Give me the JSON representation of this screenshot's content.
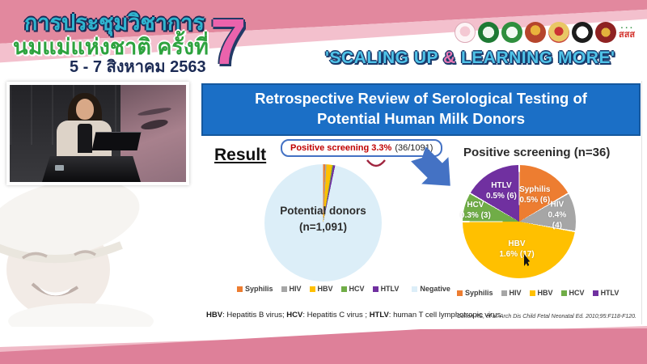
{
  "header": {
    "title_line1": "การประชุมวิชาการ",
    "title_line2": "นมแม่แห่งชาติ ครั้งที่",
    "date_line": "5 - 7 สิงหาคม 2563",
    "edition_number": "7",
    "slogan_prefix": "'SCALING UP ",
    "slogan_amp": "&",
    "slogan_suffix": " LEARNING MORE'",
    "logo_names": [
      "mother-child-foundation-logo",
      "green-seal-logo",
      "green-medical-association-logo",
      "royal-thai-emblem-logo",
      "gold-institute-emblem-logo",
      "monochrome-society-emblem-logo",
      "red-crest-logo",
      "thai-health-promotion-logo"
    ],
    "thai_health_logo_text": "สสส"
  },
  "slide": {
    "title": "Retrospective Review of Serological Testing of Potential Human Milk Donors",
    "result_label": "Result",
    "callout_highlight": "Positive screening 3.3%",
    "callout_detail": "(36/1091)",
    "footnote": [
      {
        "abbr": "HBV",
        "rest": ": Hepatitis B virus; "
      },
      {
        "abbr": "HCV",
        "rest": ": Hepatitis C virus ; "
      },
      {
        "abbr": "HTLV",
        "rest": ": human T cell lymphotropic virus"
      }
    ],
    "citation": "Cohen RS, et al. Arch Dis Child Fetal Neonatal Ed. 2010;95:F118-F120."
  },
  "chart_data": [
    {
      "type": "pie",
      "title": "Potential donors (n=1,091)",
      "center_label": "Potential donors\n(n=1,091)",
      "n_total": 1091,
      "annotation": "Positive screening 3.3% (36/1091)",
      "legend_position": "bottom",
      "slices": [
        {
          "label": "Syphilis",
          "pct": 0.5,
          "count": 6,
          "color": "#ED7D31"
        },
        {
          "label": "HIV",
          "pct": 0.4,
          "count": 4,
          "color": "#A6A6A6"
        },
        {
          "label": "HBV",
          "pct": 1.6,
          "count": 17,
          "color": "#FFC000"
        },
        {
          "label": "HCV",
          "pct": 0.3,
          "count": 3,
          "color": "#70AD47"
        },
        {
          "label": "HTLV",
          "pct": 0.5,
          "count": 6,
          "color": "#7030A0"
        },
        {
          "label": "Negative",
          "pct": 96.7,
          "count": 1055,
          "color": "#DCEEF8"
        }
      ],
      "legend": [
        "Syphilis",
        "HIV",
        "HBV",
        "HCV",
        "HTLV",
        "Negative"
      ]
    },
    {
      "type": "pie",
      "title": "Positive screening (n=36)",
      "n_total": 36,
      "legend_position": "bottom",
      "slices": [
        {
          "label": "Syphilis",
          "pct": 0.5,
          "count": 6,
          "color": "#ED7D31",
          "slice_label": "Syphilis\n0.5% (6)"
        },
        {
          "label": "HIV",
          "pct": 0.4,
          "count": 4,
          "color": "#A6A6A6",
          "slice_label": "HIV\n0.4% (4)"
        },
        {
          "label": "HBV",
          "pct": 1.6,
          "count": 17,
          "color": "#FFC000",
          "slice_label": "HBV\n1.6% (17)"
        },
        {
          "label": "HCV",
          "pct": 0.3,
          "count": 3,
          "color": "#70AD47",
          "slice_label": "HCV\n0.3% (3)"
        },
        {
          "label": "HTLV",
          "pct": 0.5,
          "count": 6,
          "color": "#7030A0",
          "slice_label": "HTLV\n0.5% (6)"
        }
      ],
      "legend": [
        "Syphilis",
        "HIV",
        "HBV",
        "HCV",
        "HTLV"
      ]
    }
  ],
  "colors": {
    "slide_title_bg": "#1B6FC6",
    "flow_arrow": "#4472C4",
    "callout_red": "#C00000",
    "header_pink_dark": "#E2889E",
    "header_pink_light": "#F3C0CD",
    "bottom_band_pink": "#DE8099",
    "edition_pink": "#EA63AC",
    "slogan_blue": "#4FC3E8",
    "title_teal": "#2FB5D0",
    "title_green": "#2EA33F",
    "date_navy": "#1C2B55"
  }
}
